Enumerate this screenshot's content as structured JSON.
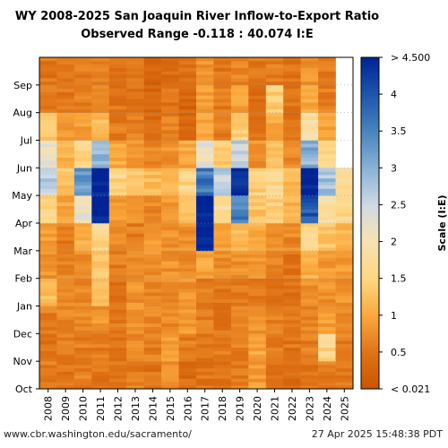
{
  "chart_data": {
    "type": "heatmap",
    "title": "WY 2008-2025 San Joaquin River Inflow-to-Export Ratio",
    "subtitle": "Observed Range -0.118 : 40.074 I:E",
    "x_tick_labels": [
      "2008",
      "2009",
      "2010",
      "2011",
      "2012",
      "2013",
      "2014",
      "2015",
      "2016",
      "2017",
      "2018",
      "2019",
      "2020",
      "2021",
      "2022",
      "2023",
      "2024",
      "2025"
    ],
    "y_tick_labels": [
      "Oct",
      "Nov",
      "Dec",
      "Jan",
      "Feb",
      "Mar",
      "Apr",
      "May",
      "Jun",
      "Jul",
      "Aug",
      "Sep"
    ],
    "colorbar": {
      "label": "Scale (I:E)",
      "tick_labels": [
        "> 4.500",
        "4",
        "3.5",
        "3",
        "2.5",
        "2",
        "1.5",
        "1",
        "0.5",
        "< 0.021"
      ],
      "range": [
        0.021,
        4.5
      ]
    },
    "approx_monthly_ratio": {
      "2008": [
        0.6,
        0.5,
        0.6,
        1.2,
        0.8,
        0.9,
        1.6,
        2.6,
        2.2,
        1.3,
        0.6,
        0.5
      ],
      "2009": [
        0.5,
        0.6,
        0.7,
        0.8,
        0.7,
        0.6,
        1.0,
        1.3,
        1.1,
        0.8,
        0.5,
        0.5
      ],
      "2010": [
        0.6,
        0.6,
        0.7,
        0.7,
        0.8,
        1.1,
        2.2,
        3.2,
        1.6,
        0.9,
        0.6,
        0.6
      ],
      "2011": [
        0.5,
        0.6,
        0.8,
        1.3,
        1.4,
        1.6,
        4.6,
        4.6,
        3.0,
        1.2,
        0.8,
        0.6
      ],
      "2012": [
        0.5,
        0.5,
        0.6,
        0.5,
        0.6,
        0.7,
        0.9,
        1.6,
        1.0,
        0.6,
        0.5,
        0.5
      ],
      "2013": [
        0.6,
        0.7,
        0.8,
        0.8,
        0.7,
        0.6,
        0.9,
        1.4,
        0.9,
        0.6,
        0.5,
        0.5
      ],
      "2014": [
        0.5,
        0.6,
        0.7,
        0.7,
        0.8,
        0.9,
        0.7,
        1.2,
        0.7,
        0.4,
        0.3,
        0.3
      ],
      "2015": [
        0.8,
        0.9,
        0.7,
        0.7,
        0.8,
        0.8,
        0.9,
        1.2,
        0.8,
        0.6,
        0.5,
        0.4
      ],
      "2016": [
        0.4,
        0.6,
        0.9,
        0.8,
        0.7,
        0.8,
        1.2,
        1.6,
        1.0,
        0.4,
        0.3,
        0.4
      ],
      "2017": [
        0.5,
        0.5,
        0.6,
        0.6,
        1.0,
        4.6,
        4.6,
        3.6,
        2.2,
        1.0,
        0.9,
        0.8
      ],
      "2018": [
        0.5,
        0.6,
        0.5,
        0.5,
        0.7,
        0.9,
        1.8,
        2.6,
        1.4,
        0.6,
        0.6,
        0.5
      ],
      "2019": [
        0.6,
        0.6,
        0.6,
        0.6,
        0.8,
        1.2,
        3.6,
        4.4,
        2.6,
        1.5,
        0.9,
        0.7
      ],
      "2020": [
        0.9,
        1.0,
        0.8,
        0.6,
        0.8,
        1.1,
        1.3,
        1.5,
        0.8,
        0.5,
        0.4,
        0.5
      ],
      "2021": [
        0.5,
        0.6,
        0.6,
        0.5,
        0.6,
        0.8,
        1.5,
        1.6,
        1.3,
        1.0,
        1.5,
        0.6
      ],
      "2022": [
        0.4,
        0.5,
        0.6,
        0.5,
        0.5,
        0.7,
        1.1,
        1.2,
        0.7,
        0.5,
        0.5,
        0.5
      ],
      "2023": [
        0.5,
        0.6,
        0.7,
        0.8,
        1.1,
        1.6,
        4.0,
        4.6,
        3.0,
        1.8,
        1.0,
        0.8
      ],
      "2024": [
        0.6,
        1.6,
        0.9,
        0.8,
        0.9,
        1.3,
        1.9,
        2.8,
        1.6,
        0.9,
        0.6,
        0.6
      ],
      "2025": [
        0.6,
        0.6,
        0.7,
        0.8,
        0.9,
        1.2,
        1.6,
        1.7,
        null,
        null,
        null,
        null
      ]
    }
  },
  "footer": {
    "left": "www.cbr.washington.edu/sacramento/",
    "right": "27 Apr 2025 15:48:38 PDT"
  }
}
